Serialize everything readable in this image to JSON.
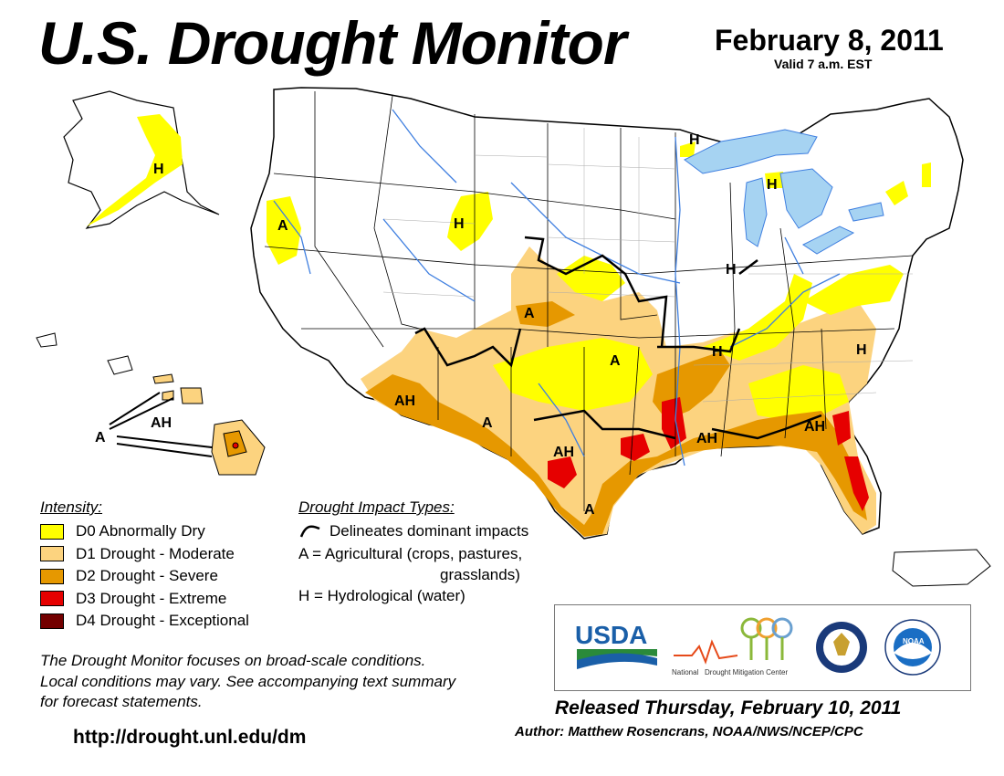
{
  "header": {
    "title": "U.S. Drought Monitor",
    "date": "February 8, 2011",
    "valid": "Valid 7 a.m. EST"
  },
  "legend": {
    "heading": "Intensity:",
    "items": [
      {
        "label": "D0 Abnormally Dry",
        "color": "#ffff00"
      },
      {
        "label": "D1 Drought - Moderate",
        "color": "#fcd37f"
      },
      {
        "label": "D2 Drought - Severe",
        "color": "#e69800"
      },
      {
        "label": "D3 Drought - Extreme",
        "color": "#e60000"
      },
      {
        "label": "D4 Drought - Exceptional",
        "color": "#730000"
      }
    ]
  },
  "impact_types": {
    "heading": "Drought Impact Types:",
    "delineates": "Delineates dominant impacts",
    "agricultural": "A = Agricultural (crops, pastures,",
    "agricultural_cont": "grasslands)",
    "hydrological": "H = Hydrological (water)"
  },
  "note": {
    "line1": "The Drought Monitor focuses on broad-scale conditions.",
    "line2": "Local conditions may vary. See accompanying text summary",
    "line3": "for forecast statements."
  },
  "url": "http://drought.unl.edu/dm",
  "released": "Released Thursday, February 10, 2011",
  "author": "Author: Matthew Rosencrans, NOAA/NWS/NCEP/CPC",
  "logos": {
    "usda": "USDA",
    "ndmc_line1": "National",
    "ndmc_line2": "Drought Mitigation Center",
    "noaa": "NOAA"
  },
  "map_labels": {
    "h": "H",
    "a": "A",
    "ah": "AH"
  },
  "colors": {
    "d0": "#ffff00",
    "d1": "#fcd37f",
    "d2": "#e69800",
    "d3": "#e60000",
    "d4": "#730000",
    "water": "#a6d3f2",
    "rivers": "#3f7fe0"
  }
}
